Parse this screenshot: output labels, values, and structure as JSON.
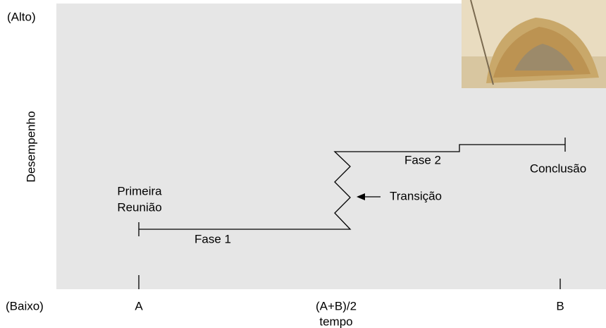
{
  "axis": {
    "high": "(Alto)",
    "low": "(Baixo)",
    "y_label": "Desempenho",
    "x_label": "tempo",
    "x_ticks": [
      "A",
      "(A+B)/2",
      "B"
    ]
  },
  "labels": {
    "start": [
      "Primeira",
      "Reunião"
    ],
    "phase1": "Fase 1",
    "phase2": "Fase 2",
    "transition": "Transição",
    "end": "Conclusão"
  }
}
